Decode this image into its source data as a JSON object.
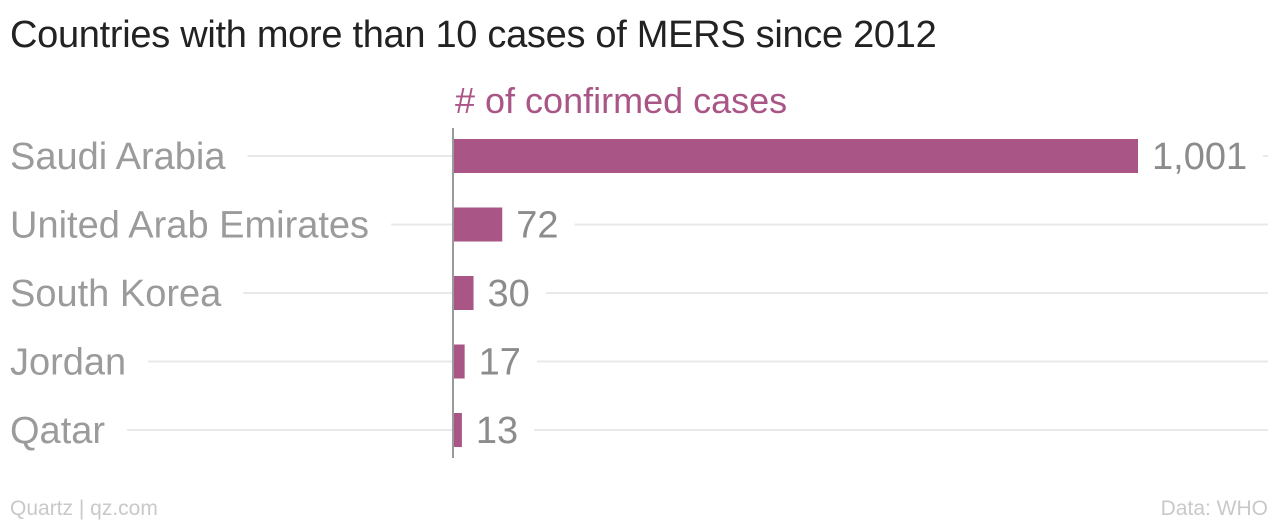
{
  "title": "Countries with more than 10 cases of MERS since 2012",
  "source_left": "Quartz | qz.com",
  "source_right": "Data: WHO",
  "colors": {
    "bar": "#a95586",
    "series_label": "#a95586",
    "category_label": "#9b9b9b",
    "value_label": "#8c8c8c",
    "gridline": "#e9e9e9",
    "axis": "#9a9a9a",
    "footer": "#c9c9c9"
  },
  "chart_data": {
    "type": "bar",
    "orientation": "horizontal",
    "series_label": "# of confirmed cases",
    "categories": [
      "Saudi Arabia",
      "United Arab Emirates",
      "South Korea",
      "Jordan",
      "Qatar"
    ],
    "values": [
      1001,
      72,
      30,
      17,
      13
    ],
    "value_labels": [
      "1,001",
      "72",
      "30",
      "17",
      "13"
    ],
    "xlim": [
      0,
      1001
    ],
    "grid": true
  }
}
